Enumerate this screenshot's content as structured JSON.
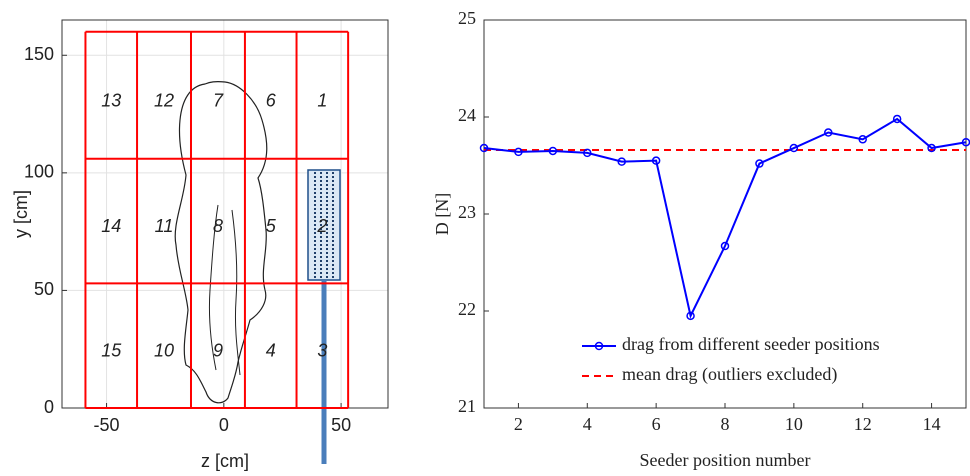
{
  "chart_data": [
    {
      "type": "grid-map",
      "xlabel": "z [cm]",
      "ylabel": "y [cm]",
      "xlim": [
        -69,
        70
      ],
      "ylim": [
        0,
        165
      ],
      "xticks": [
        -50,
        0,
        50
      ],
      "yticks": [
        0,
        50,
        100,
        150
      ],
      "grid": true,
      "cell_edges_x": [
        -59,
        -37,
        -14,
        9,
        31,
        53
      ],
      "cell_edges_y": [
        160,
        106,
        53,
        0
      ],
      "color": "#ff0000",
      "cell_labels": [
        [
          "13",
          "12",
          "7",
          "6",
          "1"
        ],
        [
          "14",
          "11",
          "8",
          "5",
          "2"
        ],
        [
          "15",
          "10",
          "9",
          "4",
          "3"
        ]
      ]
    },
    {
      "type": "line",
      "xlabel": "Seeder position number",
      "ylabel": "D [N]",
      "xlim": [
        1,
        15
      ],
      "ylim": [
        21,
        25
      ],
      "xticks": [
        2,
        4,
        6,
        8,
        10,
        12,
        14
      ],
      "yticks": [
        21,
        22,
        23,
        24,
        25
      ],
      "grid": false,
      "x": [
        1,
        2,
        3,
        4,
        5,
        6,
        7,
        8,
        9,
        10,
        11,
        12,
        13,
        14,
        15
      ],
      "series": [
        {
          "name": "drag from different seeder positions",
          "color": "#0000ff",
          "values": [
            23.68,
            23.64,
            23.65,
            23.63,
            23.54,
            23.55,
            21.95,
            22.67,
            23.52,
            23.68,
            23.84,
            23.77,
            23.98,
            23.68,
            23.74
          ]
        }
      ],
      "mean_line": {
        "name": "mean drag (outliers excluded)",
        "value": 23.66,
        "color": "#ff0000"
      },
      "legend": "lower right"
    }
  ]
}
